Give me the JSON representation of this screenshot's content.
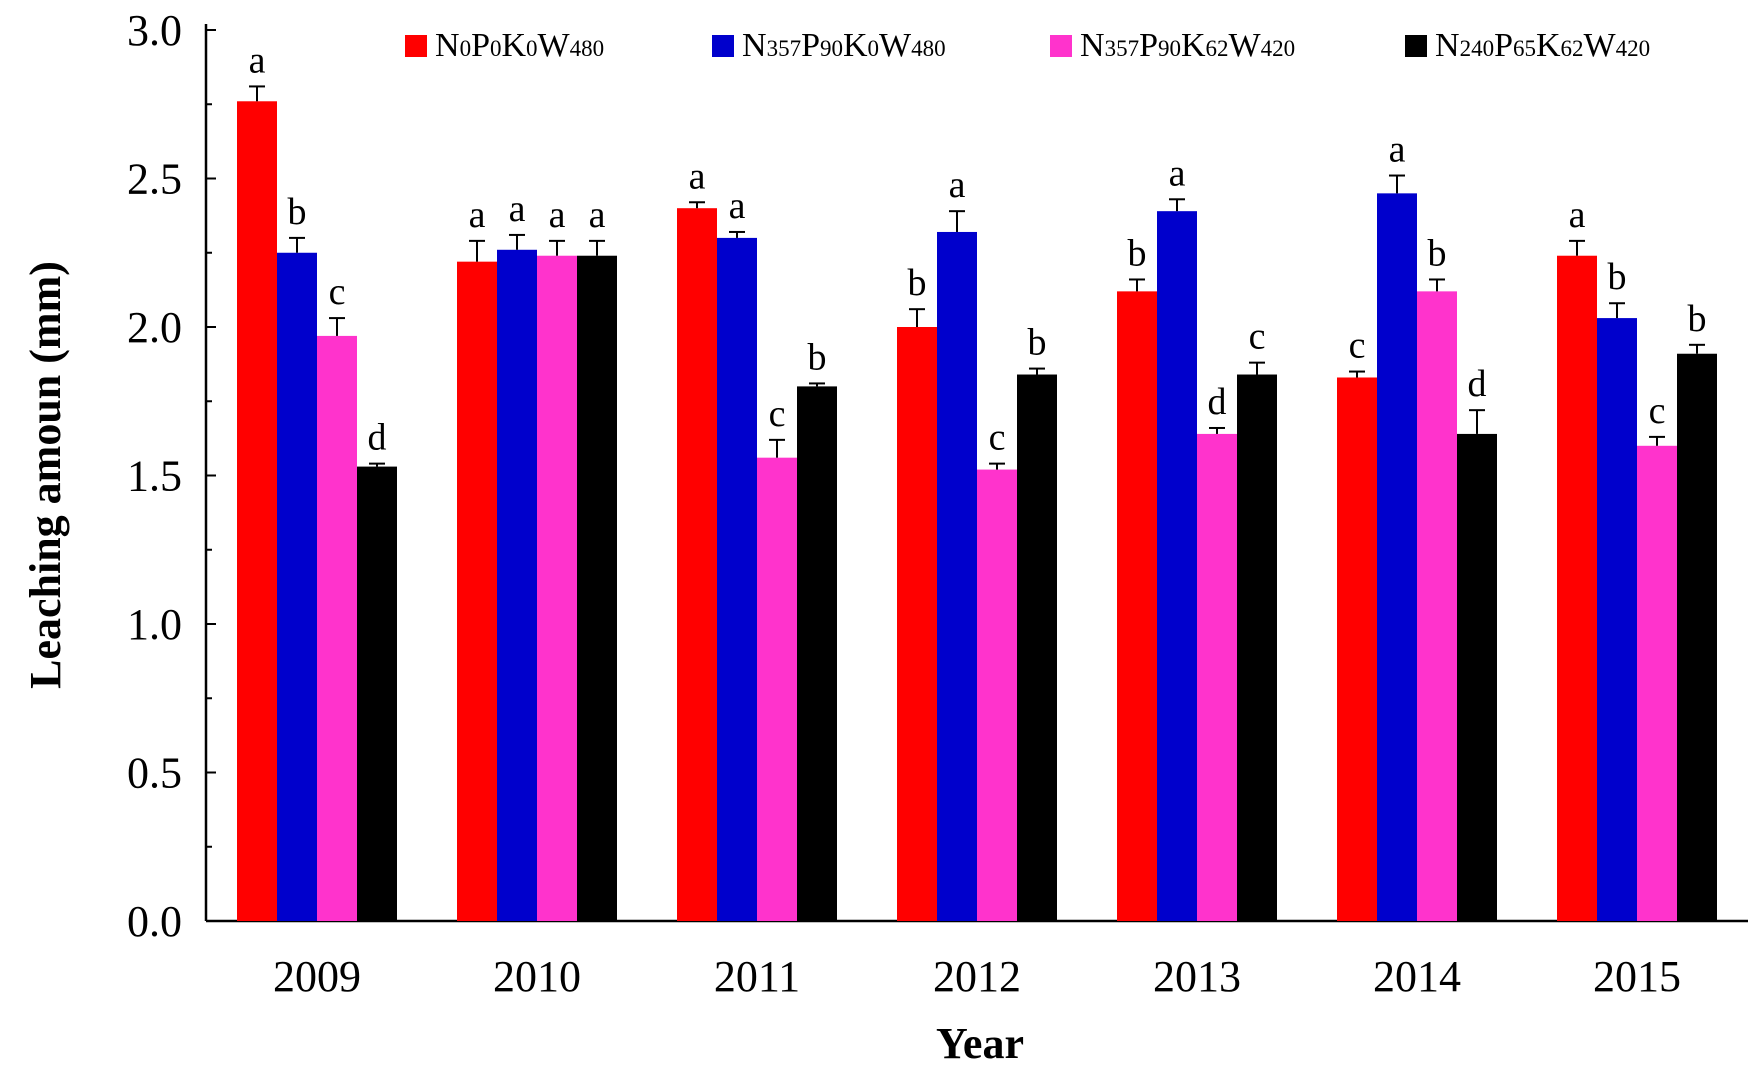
{
  "chart_data": {
    "type": "bar",
    "title": "",
    "xlabel": "Year",
    "ylabel": "Leaching amoun  (mm)",
    "ylim": [
      0,
      3.0
    ],
    "yticks": [
      0.0,
      0.5,
      1.0,
      1.5,
      2.0,
      2.5,
      3.0
    ],
    "ytick_labels": [
      "0.0",
      "0.5",
      "1.0",
      "1.5",
      "2.0",
      "2.5",
      "3.0"
    ],
    "minor_tick_step": 0.25,
    "grid": false,
    "legend_position": "top",
    "categories": [
      "2009",
      "2010",
      "2011",
      "2012",
      "2013",
      "2014",
      "2015"
    ],
    "series": [
      {
        "name": "N0P0K0W480",
        "name_parts": [
          [
            "N",
            "0"
          ],
          [
            "P",
            "0"
          ],
          [
            "K",
            "0"
          ],
          [
            "W",
            "480"
          ]
        ],
        "color": "#ff0000",
        "values": [
          2.76,
          2.22,
          2.4,
          2.0,
          2.12,
          1.83,
          2.24
        ],
        "errors": [
          0.05,
          0.07,
          0.02,
          0.06,
          0.04,
          0.02,
          0.05
        ],
        "letters": [
          "a",
          "a",
          "a",
          "b",
          "b",
          "c",
          "a"
        ]
      },
      {
        "name": "N357P90K0W480",
        "name_parts": [
          [
            "N",
            "357"
          ],
          [
            "P",
            "90"
          ],
          [
            "K",
            "0"
          ],
          [
            "W",
            "480"
          ]
        ],
        "color": "#0000cc",
        "values": [
          2.25,
          2.26,
          2.3,
          2.32,
          2.39,
          2.45,
          2.03
        ],
        "errors": [
          0.05,
          0.05,
          0.02,
          0.07,
          0.04,
          0.06,
          0.05
        ],
        "letters": [
          "b",
          "a",
          "a",
          "a",
          "a",
          "a",
          "b"
        ]
      },
      {
        "name": "N357P90K62W420",
        "name_parts": [
          [
            "N",
            "357"
          ],
          [
            "P",
            "90"
          ],
          [
            "K",
            "62"
          ],
          [
            "W",
            "420"
          ]
        ],
        "color": "#ff33cc",
        "values": [
          1.97,
          2.24,
          1.56,
          1.52,
          1.64,
          2.12,
          1.6
        ],
        "errors": [
          0.06,
          0.05,
          0.06,
          0.02,
          0.02,
          0.04,
          0.03
        ],
        "letters": [
          "c",
          "a",
          "c",
          "c",
          "d",
          "b",
          "c"
        ]
      },
      {
        "name": "N240P65K62W420",
        "name_parts": [
          [
            "N",
            "240"
          ],
          [
            "P",
            "65"
          ],
          [
            "K",
            "62"
          ],
          [
            "W",
            "420"
          ]
        ],
        "color": "#000000",
        "values": [
          1.53,
          2.24,
          1.8,
          1.84,
          1.84,
          1.64,
          1.91
        ],
        "errors": [
          0.01,
          0.05,
          0.01,
          0.02,
          0.04,
          0.08,
          0.03
        ],
        "letters": [
          "d",
          "a",
          "b",
          "b",
          "c",
          "d",
          "b"
        ]
      }
    ]
  }
}
